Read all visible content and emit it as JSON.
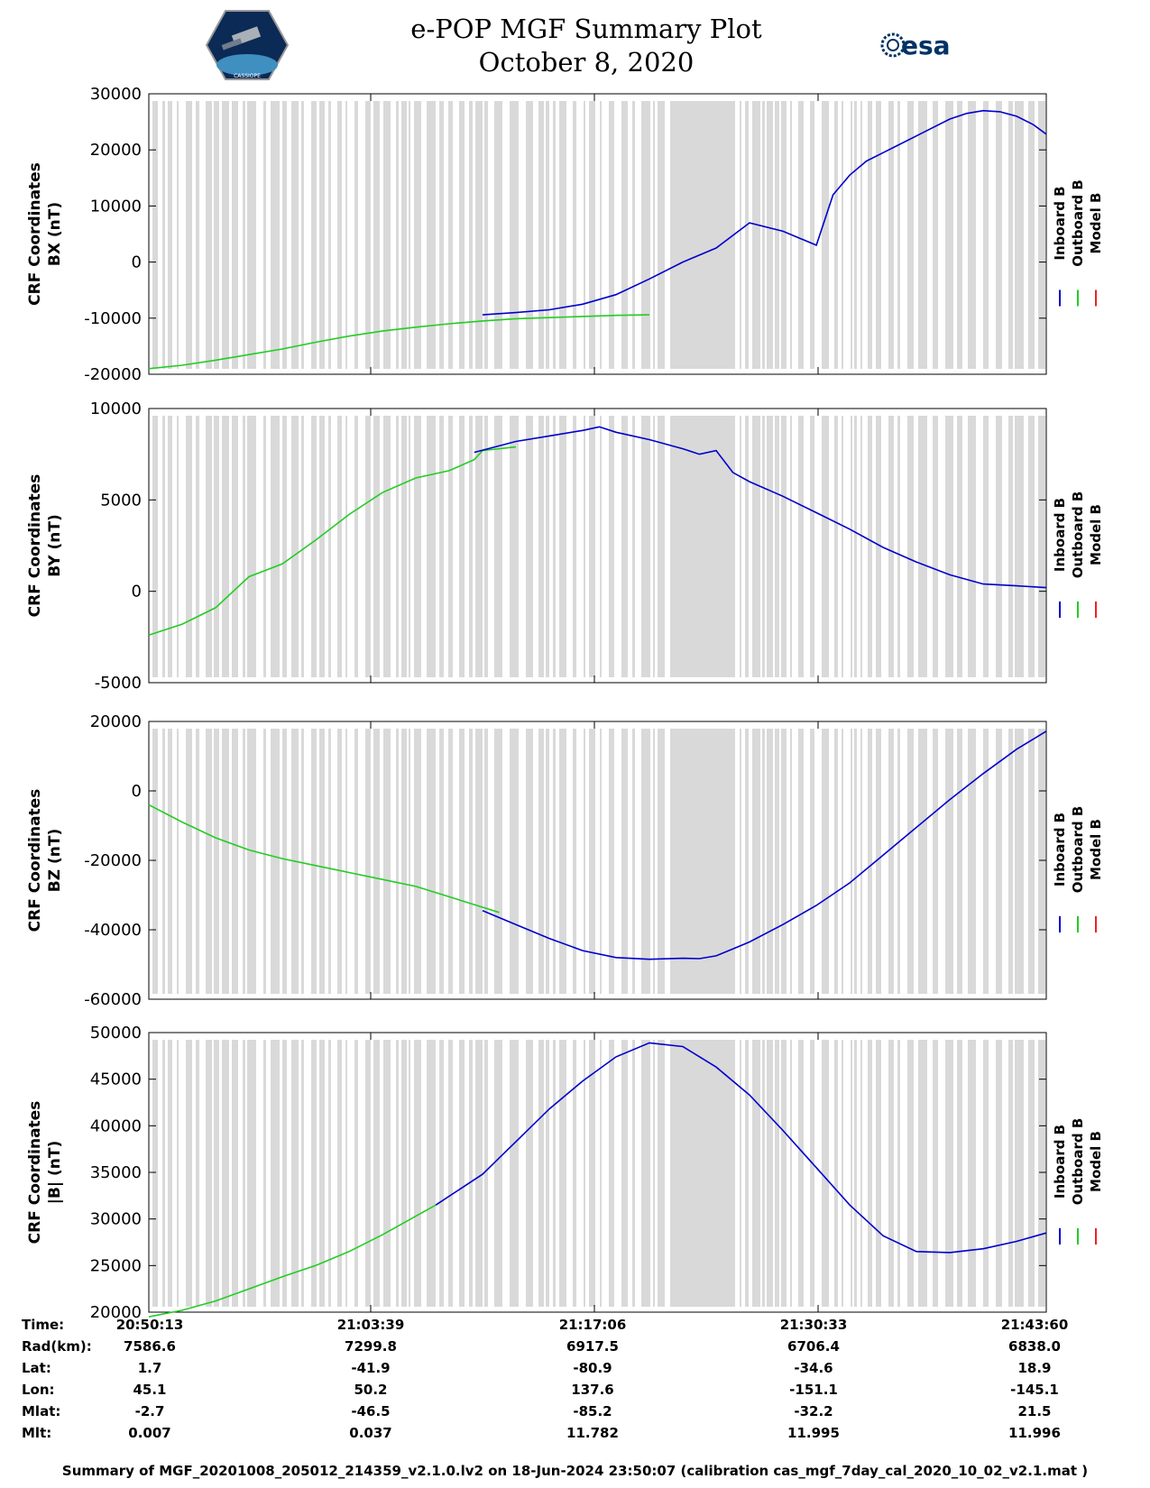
{
  "header": {
    "title_line1": "e-POP MGF Summary Plot",
    "title_line2": "October 8, 2020",
    "left_logo_text": "CASSIOPE",
    "right_logo_text": "esa"
  },
  "colors": {
    "inboard": "#0000cc",
    "outboard": "#22cc22",
    "model": "#ee2222",
    "shade": "#d9d9d9"
  },
  "legend": [
    "Inboard B",
    "Outboard B",
    "Model B"
  ],
  "chart_data": [
    {
      "type": "line",
      "ylabel": [
        "CRF Coordinates",
        "BX (nT)"
      ],
      "ylim": [
        -20000,
        30000
      ],
      "yticks": [
        -20000,
        -10000,
        0,
        10000,
        20000,
        30000
      ],
      "x_unit": "minutes since 20:50:13",
      "xlim": [
        0,
        53.78
      ],
      "outboard_x": [
        0,
        2,
        4,
        6,
        8,
        10,
        12,
        14,
        16,
        18,
        20,
        22,
        24,
        26,
        28,
        30
      ],
      "outboard_y": [
        -19000,
        -18400,
        -17500,
        -16500,
        -15500,
        -14300,
        -13200,
        -12300,
        -11600,
        -11000,
        -10500,
        -10100,
        -9900,
        -9700,
        -9500,
        -9400
      ],
      "inboard_x": [
        20,
        22,
        24,
        26,
        28,
        30,
        32,
        34,
        36,
        38,
        40,
        41,
        42,
        43,
        44,
        45,
        46,
        47,
        48,
        49,
        50,
        51,
        52,
        53,
        53.78
      ],
      "inboard_y": [
        -9400,
        -9000,
        -8500,
        -7500,
        -5800,
        -3000,
        0,
        2500,
        7000,
        5500,
        3000,
        12000,
        15500,
        18000,
        19500,
        21000,
        22500,
        24000,
        25500,
        26500,
        27000,
        26800,
        26000,
        24500,
        22800
      ]
    },
    {
      "type": "line",
      "ylabel": [
        "CRF Coordinates",
        "BY (nT)"
      ],
      "ylim": [
        -5000,
        10000
      ],
      "yticks": [
        -5000,
        0,
        5000,
        10000
      ],
      "x_unit": "minutes since 20:50:13",
      "xlim": [
        0,
        53.78
      ],
      "outboard_x": [
        0,
        2,
        4,
        6,
        8,
        10,
        12,
        14,
        16,
        18,
        19.5,
        20,
        22
      ],
      "outboard_y": [
        -2400,
        -1800,
        -900,
        800,
        1500,
        2800,
        4200,
        5400,
        6200,
        6600,
        7200,
        7700,
        7900
      ],
      "inboard_x": [
        19.5,
        22,
        24,
        26,
        27,
        28,
        30,
        32,
        33,
        34,
        35,
        36,
        38,
        40,
        42,
        44,
        46,
        48,
        50,
        52,
        53.78
      ],
      "inboard_y": [
        7600,
        8200,
        8500,
        8800,
        9000,
        8700,
        8300,
        7800,
        7500,
        7700,
        6500,
        6000,
        5200,
        4300,
        3400,
        2400,
        1600,
        900,
        400,
        300,
        200
      ]
    },
    {
      "type": "line",
      "ylabel": [
        "CRF Coordinates",
        "BZ (nT)"
      ],
      "ylim": [
        -60000,
        20000
      ],
      "yticks": [
        -60000,
        -40000,
        -20000,
        0,
        20000
      ],
      "x_unit": "minutes since 20:50:13",
      "xlim": [
        0,
        53.78
      ],
      "outboard_x": [
        0,
        2,
        4,
        6,
        8,
        10,
        12,
        14,
        16,
        18,
        20,
        21
      ],
      "outboard_y": [
        -4000,
        -9000,
        -13500,
        -17000,
        -19500,
        -21500,
        -23500,
        -25500,
        -27500,
        -30500,
        -33500,
        -35000
      ],
      "inboard_x": [
        20,
        22,
        24,
        26,
        28,
        30,
        32,
        33,
        34,
        35,
        36,
        38,
        40,
        42,
        44,
        46,
        48,
        50,
        52,
        53.78
      ],
      "inboard_y": [
        -34500,
        -38500,
        -42500,
        -46000,
        -48000,
        -48500,
        -48200,
        -48300,
        -47500,
        -45500,
        -43500,
        -38500,
        -33000,
        -26500,
        -18500,
        -10500,
        -2500,
        5000,
        12000,
        17200
      ]
    },
    {
      "type": "line",
      "ylabel": [
        "CRF Coordinates",
        "|B| (nT)"
      ],
      "ylim": [
        20000,
        50000
      ],
      "yticks": [
        20000,
        25000,
        30000,
        35000,
        40000,
        45000,
        50000
      ],
      "x_unit": "minutes since 20:50:13",
      "xlim": [
        0,
        53.78
      ],
      "outboard_x": [
        0,
        2,
        4,
        6,
        8,
        10,
        12,
        14,
        16,
        17.2
      ],
      "outboard_y": [
        19500,
        20200,
        21200,
        22500,
        23800,
        25000,
        26500,
        28300,
        30300,
        31500
      ],
      "inboard_x": [
        17.2,
        20,
        22,
        24,
        26,
        28,
        30,
        32,
        34,
        36,
        38,
        40,
        42,
        44,
        46,
        48,
        50,
        52,
        53.78
      ],
      "inboard_y": [
        31500,
        34800,
        38300,
        41800,
        44800,
        47400,
        48900,
        48500,
        46300,
        43300,
        39500,
        35500,
        31500,
        28200,
        26500,
        26400,
        26800,
        27600,
        28500
      ]
    }
  ],
  "ephemeris": {
    "labels": [
      "Time:",
      "Rad(km):",
      "Lat:",
      "Lon:",
      "Mlat:",
      "Mlt:"
    ],
    "columns": [
      [
        "20:50:13",
        "7586.6",
        "1.7",
        "45.1",
        "-2.7",
        "0.007"
      ],
      [
        "21:03:39",
        "7299.8",
        "-41.9",
        "50.2",
        "-46.5",
        "0.037"
      ],
      [
        "21:17:06",
        "6917.5",
        "-80.9",
        "137.6",
        "-85.2",
        "11.782"
      ],
      [
        "21:30:33",
        "6706.4",
        "-34.6",
        "-151.1",
        "-32.2",
        "11.995"
      ],
      [
        "21:43:60",
        "6838.0",
        "18.9",
        "-145.1",
        "21.5",
        "11.996"
      ]
    ]
  },
  "footer": "Summary of MGF_20201008_205012_214359_v2.1.0.lv2 on 18-Jun-2024 23:50:07 (calibration cas_mgf_7day_cal_2020_10_02_v2.1.mat )"
}
